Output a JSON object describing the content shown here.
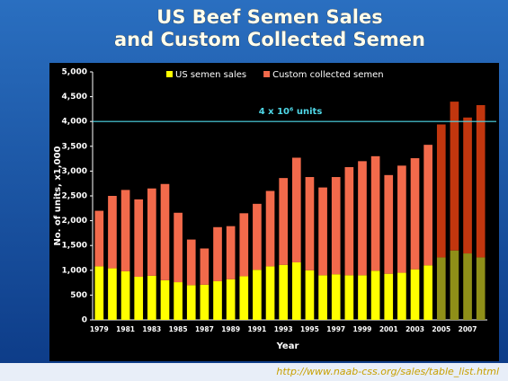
{
  "chart_data": {
    "type": "stacked_bar",
    "title": "US Beef Semen Sales and Custom Collected Semen",
    "x_label": "Year",
    "y_label": "No. of units, x1,000",
    "source": "http://www.naab-css.org/sales/table_list.html",
    "categories": [
      "1979",
      null,
      "1981",
      null,
      "1983",
      null,
      "1985",
      null,
      "1987",
      null,
      "1989",
      null,
      "1991",
      null,
      "1993",
      null,
      "1995",
      null,
      "1997",
      null,
      "1999",
      null,
      "2001",
      null,
      "2003",
      null,
      "2005",
      null,
      "2007",
      null
    ],
    "series": [
      {
        "name": "US semen sales",
        "color": "#ffff00",
        "colors": [
          "#ffff00",
          "#ffff00",
          "#ffff00",
          "#ffff00",
          "#ffff00",
          "#ffff00",
          "#ffff00",
          "#ffff00",
          "#ffff00",
          "#ffff00",
          "#ffff00",
          "#ffff00",
          "#ffff00",
          "#ffff00",
          "#ffff00",
          "#ffff00",
          "#ffff00",
          "#ffff00",
          "#ffff00",
          "#ffff00",
          "#ffff00",
          "#ffff00",
          "#ffff00",
          "#ffff00",
          "#ffff00",
          "#ffff00",
          "#8f8f18",
          "#8f8f18",
          "#8f8f18",
          "#8f8f18"
        ],
        "values": [
          1080,
          1040,
          980,
          870,
          890,
          800,
          760,
          700,
          710,
          780,
          820,
          880,
          1010,
          1080,
          1110,
          1160,
          1000,
          900,
          920,
          900,
          900,
          990,
          930,
          950,
          1020,
          1100,
          1260,
          1400,
          1340,
          1260
        ]
      },
      {
        "name": "Custom collected semen",
        "color": "#f26a4b",
        "colors": [
          "#f26a4b",
          "#f26a4b",
          "#f26a4b",
          "#f26a4b",
          "#f26a4b",
          "#f26a4b",
          "#f26a4b",
          "#f26a4b",
          "#f26a4b",
          "#f26a4b",
          "#f26a4b",
          "#f26a4b",
          "#f26a4b",
          "#f26a4b",
          "#f26a4b",
          "#f26a4b",
          "#f26a4b",
          "#f26a4b",
          "#f26a4b",
          "#f26a4b",
          "#f26a4b",
          "#f26a4b",
          "#f26a4b",
          "#f26a4b",
          "#f26a4b",
          "#f26a4b",
          "#c2360e",
          "#c2360e",
          "#c2360e",
          "#c2360e"
        ],
        "values": [
          1120,
          1460,
          1640,
          1560,
          1760,
          1940,
          1400,
          920,
          730,
          1090,
          1070,
          1270,
          1330,
          1520,
          1750,
          2110,
          1880,
          1770,
          1960,
          2180,
          2300,
          2310,
          1990,
          2160,
          2240,
          2430,
          2680,
          3000,
          2740,
          3070
        ]
      }
    ],
    "ylim": [
      0,
      5000
    ],
    "yticks": [
      0,
      500,
      {
        "value": 1000,
        "label": "1,000"
      },
      {
        "value": 1500,
        "label": "1,500"
      },
      {
        "value": 2000,
        "label": "2,000"
      },
      {
        "value": 2500,
        "label": "2,500"
      },
      {
        "value": 3000,
        "label": "3,000"
      },
      {
        "value": 3500,
        "label": "3,500"
      },
      {
        "value": 4000,
        "label": "4,000"
      },
      {
        "value": 4500,
        "label": "4,500"
      },
      {
        "value": 5000,
        "label": "5,000"
      }
    ],
    "reference_line": {
      "value": 4000,
      "label": "4 x 10⁶ units",
      "color": "#4fd8e8"
    },
    "legend": "top"
  }
}
